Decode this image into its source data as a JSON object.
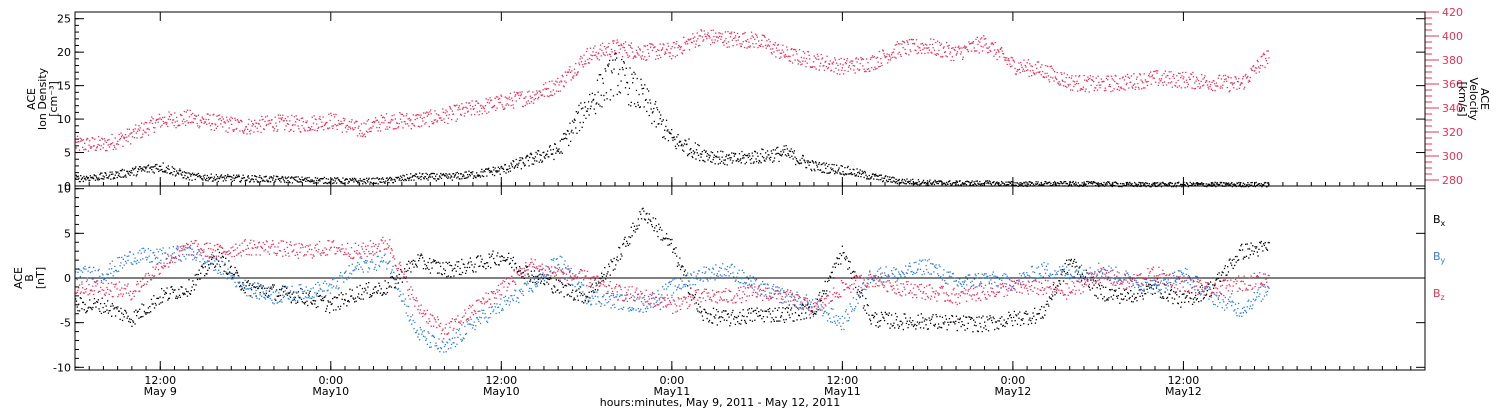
{
  "chart_data": [
    {
      "type": "scatter",
      "panel": "top",
      "ylabel_lines": [
        "ACE",
        "Ion Density",
        "[cm⁻³]"
      ],
      "y2label_lines": [
        "ACE",
        "Velocity",
        "[km/s]"
      ],
      "ylim": [
        0,
        26
      ],
      "yticks": [
        0,
        5,
        10,
        15,
        20,
        25
      ],
      "y2lim": [
        275,
        420
      ],
      "y2ticks": [
        280,
        300,
        320,
        340,
        360,
        380,
        400,
        420
      ],
      "colors": {
        "density": "#000000",
        "velocity": "#e8305a"
      },
      "series": [
        {
          "name": "Ion Density",
          "axis": "left",
          "x_hours": [
            6,
            8,
            10,
            12,
            14,
            16,
            18,
            20,
            22,
            24,
            26,
            28,
            30,
            32,
            34,
            36,
            38,
            40,
            42,
            44,
            46,
            48,
            50,
            52,
            54,
            56,
            58,
            60,
            62,
            64,
            66,
            68,
            70,
            72,
            74,
            76,
            78,
            80,
            82,
            84,
            86,
            88,
            90
          ],
          "values": [
            1.2,
            1.5,
            2.2,
            3.0,
            1.5,
            1.3,
            1.2,
            1.1,
            1.0,
            0.9,
            0.8,
            0.9,
            1.5,
            1.4,
            1.8,
            2.5,
            4.0,
            5.5,
            12.0,
            17.0,
            13.0,
            7.0,
            5.0,
            4.0,
            4.5,
            5.0,
            3.0,
            2.5,
            1.5,
            0.8,
            0.6,
            0.5,
            0.5,
            0.4,
            0.4,
            0.4,
            0.4,
            0.3,
            0.3,
            0.3,
            0.3,
            0.3,
            0.3
          ]
        },
        {
          "name": "Velocity",
          "axis": "right",
          "x_hours": [
            6,
            8,
            10,
            12,
            14,
            16,
            18,
            20,
            22,
            24,
            26,
            28,
            30,
            32,
            34,
            36,
            38,
            40,
            42,
            44,
            46,
            48,
            50,
            52,
            54,
            56,
            58,
            60,
            62,
            64,
            66,
            68,
            70,
            72,
            74,
            76,
            78,
            80,
            82,
            84,
            86,
            88,
            90
          ],
          "values": [
            310,
            310,
            318,
            330,
            332,
            328,
            325,
            328,
            327,
            330,
            322,
            330,
            330,
            334,
            340,
            345,
            350,
            360,
            384,
            391,
            387,
            388,
            400,
            398,
            397,
            385,
            380,
            375,
            378,
            390,
            392,
            386,
            395,
            376,
            372,
            362,
            360,
            362,
            365,
            364,
            362,
            360,
            385
          ]
        }
      ]
    },
    {
      "type": "scatter",
      "panel": "bottom",
      "ylabel_lines": [
        "ACE",
        "B",
        "[nT]"
      ],
      "ylim": [
        -10.3,
        10.3
      ],
      "yticks": [
        -10,
        -5,
        0,
        5,
        10
      ],
      "series": [
        {
          "name": "Bx",
          "color": "#000000",
          "x_hours": [
            6,
            8,
            10,
            12,
            14,
            16,
            18,
            20,
            22,
            24,
            26,
            28,
            30,
            32,
            34,
            36,
            38,
            40,
            42,
            44,
            46,
            48,
            50,
            52,
            54,
            56,
            58,
            60,
            62,
            64,
            66,
            68,
            70,
            72,
            74,
            76,
            78,
            80,
            82,
            84,
            86,
            88,
            90
          ],
          "values": [
            -3.0,
            -3.0,
            -4.5,
            -2.0,
            -1.0,
            2.5,
            -1.0,
            -1.5,
            -2.0,
            -3.0,
            -1.5,
            -1.0,
            2.0,
            1.0,
            1.5,
            2.5,
            0.5,
            -1.0,
            -2.0,
            2.0,
            7.5,
            3.5,
            -4.0,
            -4.5,
            -4.0,
            -4.0,
            -3.5,
            3.0,
            -4.5,
            -4.8,
            -4.8,
            -5.0,
            -5.1,
            -4.5,
            -4.0,
            2.0,
            -1.5,
            -2.0,
            -1.0,
            -2.5,
            -1.0,
            3.0,
            3.5
          ]
        },
        {
          "name": "By",
          "color": "#2c80dd",
          "x_hours": [
            6,
            8,
            10,
            12,
            14,
            16,
            18,
            20,
            22,
            24,
            26,
            28,
            30,
            32,
            34,
            36,
            38,
            40,
            42,
            44,
            46,
            48,
            50,
            52,
            54,
            56,
            58,
            60,
            62,
            64,
            66,
            68,
            70,
            72,
            74,
            76,
            78,
            80,
            82,
            84,
            86,
            88,
            90
          ],
          "values": [
            0.5,
            0.5,
            2.5,
            2.5,
            3.0,
            1.5,
            -1.0,
            -2.0,
            -1.5,
            -1.0,
            1.5,
            2.0,
            -6.0,
            -8.0,
            -5.0,
            -3.0,
            -1.0,
            2.0,
            -2.0,
            -2.5,
            -3.0,
            -1.0,
            0.5,
            1.0,
            -1.0,
            -2.0,
            -3.0,
            -5.0,
            0.5,
            0.5,
            1.5,
            -0.5,
            0.0,
            -0.5,
            1.0,
            0.5,
            1.0,
            0.0,
            -1.0,
            0.5,
            -2.0,
            -3.5,
            -1.0
          ]
        },
        {
          "name": "Bz",
          "color": "#e8305a",
          "x_hours": [
            6,
            8,
            10,
            12,
            14,
            16,
            18,
            20,
            22,
            24,
            26,
            28,
            30,
            32,
            34,
            36,
            38,
            40,
            42,
            44,
            46,
            48,
            50,
            52,
            54,
            56,
            58,
            60,
            62,
            64,
            66,
            68,
            70,
            72,
            74,
            76,
            78,
            80,
            82,
            84,
            86,
            88,
            90
          ],
          "values": [
            -1.0,
            -1.0,
            -1.5,
            1.5,
            3.5,
            3.0,
            3.5,
            3.5,
            3.0,
            3.5,
            3.0,
            4.0,
            -3.0,
            -6.0,
            -3.5,
            -1.0,
            1.5,
            0.5,
            0.0,
            -1.5,
            -2.0,
            -3.0,
            -2.0,
            -2.0,
            -1.5,
            -2.0,
            -3.5,
            -1.0,
            0.0,
            -1.0,
            -1.5,
            -2.0,
            -1.5,
            -1.0,
            -1.0,
            -1.5,
            0.5,
            -0.5,
            0.5,
            -0.5,
            -1.5,
            -0.5,
            0.0
          ]
        }
      ]
    }
  ],
  "x_axis": {
    "xlim_hours": [
      6,
      101
    ],
    "major_ticks": [
      {
        "hour": 12,
        "line1": "12:00",
        "line2": "May 9"
      },
      {
        "hour": 24,
        "line1": "0:00",
        "line2": "May10"
      },
      {
        "hour": 36,
        "line1": "12:00",
        "line2": "May10"
      },
      {
        "hour": 48,
        "line1": "0:00",
        "line2": "May11"
      },
      {
        "hour": 60,
        "line1": "12:00",
        "line2": "May11"
      },
      {
        "hour": 72,
        "line1": "0:00",
        "line2": "May12"
      },
      {
        "hour": 84,
        "line1": "12:00",
        "line2": "May12"
      }
    ],
    "title": "hours:minutes, May  9, 2011 - May 12, 2011"
  }
}
